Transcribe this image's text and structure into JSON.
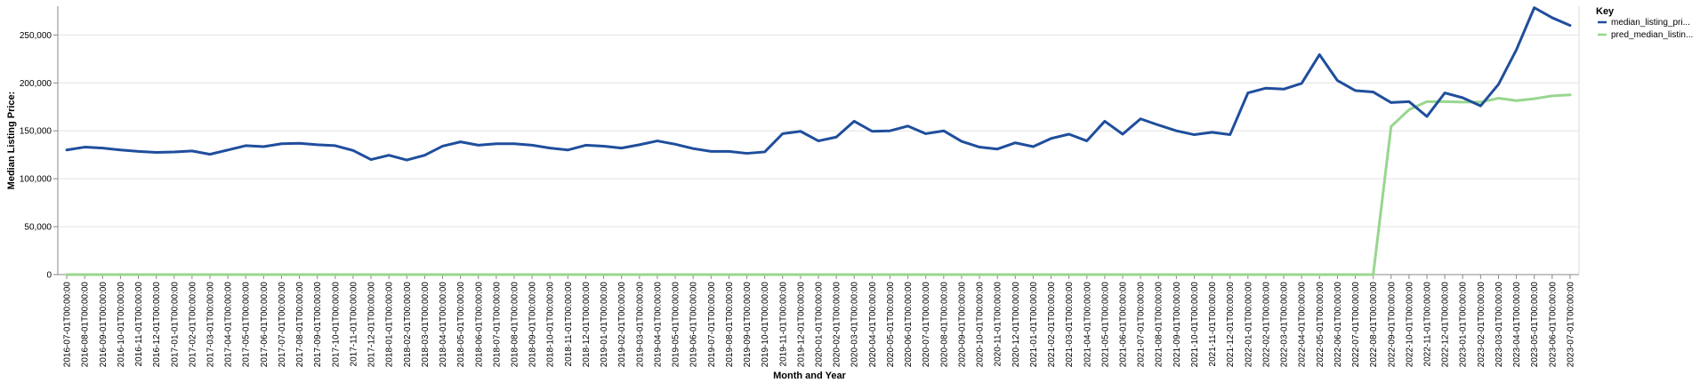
{
  "chart_data": {
    "type": "line",
    "xlabel": "Month and Year",
    "ylabel": "Median Listing Price:",
    "ylim": [
      0,
      280000
    ],
    "yticks": [
      0,
      50000,
      100000,
      150000,
      200000,
      250000
    ],
    "ytick_labels": [
      "0",
      "50,000",
      "100,000",
      "150,000",
      "200,000",
      "250,000"
    ],
    "grid": true,
    "legend": {
      "title": "Key",
      "placement": "top-right"
    },
    "x": [
      "2016-07-01T00:00:00",
      "2016-08-01T00:00:00",
      "2016-09-01T00:00:00",
      "2016-10-01T00:00:00",
      "2016-11-01T00:00:00",
      "2016-12-01T00:00:00",
      "2017-01-01T00:00:00",
      "2017-02-01T00:00:00",
      "2017-03-01T00:00:00",
      "2017-04-01T00:00:00",
      "2017-05-01T00:00:00",
      "2017-06-01T00:00:00",
      "2017-07-01T00:00:00",
      "2017-08-01T00:00:00",
      "2017-09-01T00:00:00",
      "2017-10-01T00:00:00",
      "2017-11-01T00:00:00",
      "2017-12-01T00:00:00",
      "2018-01-01T00:00:00",
      "2018-02-01T00:00:00",
      "2018-03-01T00:00:00",
      "2018-04-01T00:00:00",
      "2018-05-01T00:00:00",
      "2018-06-01T00:00:00",
      "2018-07-01T00:00:00",
      "2018-08-01T00:00:00",
      "2018-09-01T00:00:00",
      "2018-10-01T00:00:00",
      "2018-11-01T00:00:00",
      "2018-12-01T00:00:00",
      "2019-01-01T00:00:00",
      "2019-02-01T00:00:00",
      "2019-03-01T00:00:00",
      "2019-04-01T00:00:00",
      "2019-05-01T00:00:00",
      "2019-06-01T00:00:00",
      "2019-07-01T00:00:00",
      "2019-08-01T00:00:00",
      "2019-09-01T00:00:00",
      "2019-10-01T00:00:00",
      "2019-11-01T00:00:00",
      "2019-12-01T00:00:00",
      "2020-01-01T00:00:00",
      "2020-02-01T00:00:00",
      "2020-03-01T00:00:00",
      "2020-04-01T00:00:00",
      "2020-05-01T00:00:00",
      "2020-06-01T00:00:00",
      "2020-07-01T00:00:00",
      "2020-08-01T00:00:00",
      "2020-09-01T00:00:00",
      "2020-10-01T00:00:00",
      "2020-11-01T00:00:00",
      "2020-12-01T00:00:00",
      "2021-01-01T00:00:00",
      "2021-02-01T00:00:00",
      "2021-03-01T00:00:00",
      "2021-04-01T00:00:00",
      "2021-05-01T00:00:00",
      "2021-06-01T00:00:00",
      "2021-07-01T00:00:00",
      "2021-08-01T00:00:00",
      "2021-09-01T00:00:00",
      "2021-10-01T00:00:00",
      "2021-11-01T00:00:00",
      "2021-12-01T00:00:00",
      "2022-01-01T00:00:00",
      "2022-02-01T00:00:00",
      "2022-03-01T00:00:00",
      "2022-04-01T00:00:00",
      "2022-05-01T00:00:00",
      "2022-06-01T00:00:00",
      "2022-07-01T00:00:00",
      "2022-08-01T00:00:00",
      "2022-09-01T00:00:00",
      "2022-10-01T00:00:00",
      "2022-11-01T00:00:00",
      "2022-12-01T00:00:00",
      "2023-01-01T00:00:00",
      "2023-02-01T00:00:00",
      "2023-03-01T00:00:00",
      "2023-04-01T00:00:00",
      "2023-05-01T00:00:00",
      "2023-06-01T00:00:00",
      "2023-07-01T00:00:00"
    ],
    "series": [
      {
        "name": "median_listing_pri...",
        "color": "#1f4e9c",
        "values": [
          130000,
          133000,
          132000,
          130000,
          128500,
          127500,
          128000,
          129000,
          125500,
          130000,
          134500,
          133500,
          136500,
          137000,
          135500,
          134500,
          129500,
          120000,
          124500,
          119500,
          124500,
          134000,
          138500,
          135000,
          136500,
          136500,
          135000,
          132000,
          130000,
          135000,
          134000,
          132000,
          135500,
          139500,
          136000,
          131500,
          128500,
          128500,
          126500,
          128000,
          147000,
          149500,
          139500,
          143500,
          160000,
          149500,
          150000,
          155000,
          147000,
          150000,
          139000,
          133000,
          131000,
          137500,
          133500,
          142000,
          146500,
          139500,
          160000,
          146500,
          162500,
          156000,
          150000,
          146000,
          148500,
          146000,
          189500,
          194500,
          193500,
          199500,
          229500,
          202500,
          192000,
          190500,
          179500,
          180500,
          165000,
          189500,
          184500,
          176000,
          198500,
          234500,
          278500,
          268000,
          260000
        ]
      },
      {
        "name": "pred_median_listin...",
        "color": "#98d68f",
        "values": [
          0,
          0,
          0,
          0,
          0,
          0,
          0,
          0,
          0,
          0,
          0,
          0,
          0,
          0,
          0,
          0,
          0,
          0,
          0,
          0,
          0,
          0,
          0,
          0,
          0,
          0,
          0,
          0,
          0,
          0,
          0,
          0,
          0,
          0,
          0,
          0,
          0,
          0,
          0,
          0,
          0,
          0,
          0,
          0,
          0,
          0,
          0,
          0,
          0,
          0,
          0,
          0,
          0,
          0,
          0,
          0,
          0,
          0,
          0,
          0,
          0,
          0,
          0,
          0,
          0,
          0,
          0,
          0,
          0,
          0,
          0,
          0,
          0,
          0,
          154500,
          172000,
          180500,
          180500,
          180000,
          180000,
          184000,
          181500,
          183500,
          186500,
          187500
        ]
      }
    ]
  }
}
